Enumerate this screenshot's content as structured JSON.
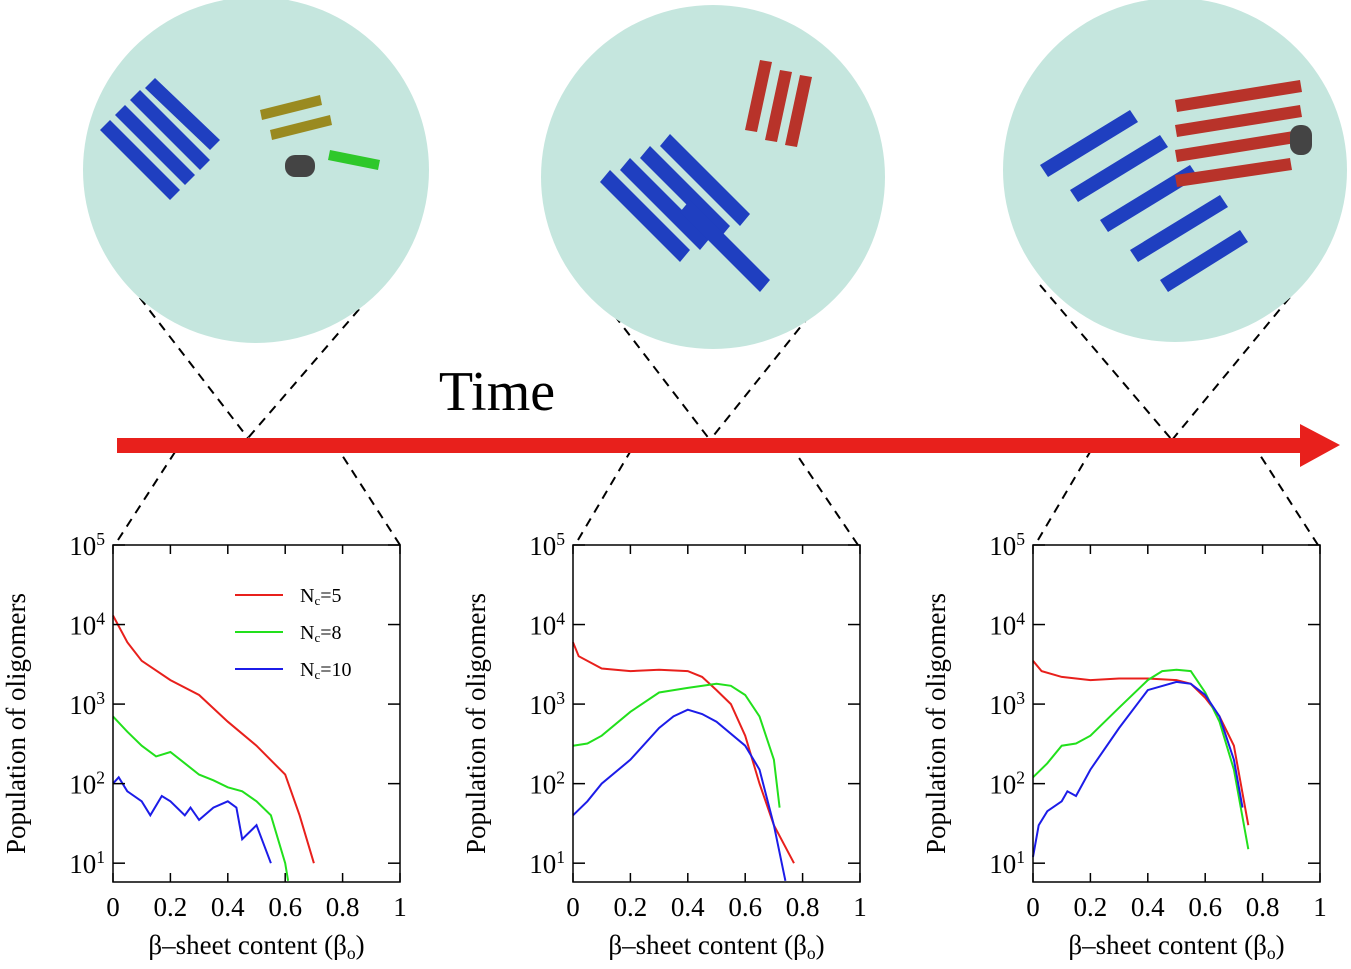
{
  "timeline": {
    "label": "Time"
  },
  "chart_data": [
    {
      "type": "line",
      "x_label": "β–sheet content (β_o)",
      "y_label": "Population of oligomers",
      "log_y": true,
      "xlim": [
        0,
        1
      ],
      "xticks": [
        0,
        0.2,
        0.4,
        0.6,
        0.8,
        1
      ],
      "ylim": [
        5.8,
        100000
      ],
      "yticks": [
        {
          "value": 10,
          "label": "10^1"
        },
        {
          "value": 100,
          "label": "10^2"
        },
        {
          "value": 1000,
          "label": "10^3"
        },
        {
          "value": 10000,
          "label": "10^4"
        },
        {
          "value": 100000,
          "label": "10^5"
        }
      ],
      "legend": "upper right",
      "series": [
        {
          "name": "N_c=5",
          "color": "#e8201c",
          "x": [
            0,
            0.05,
            0.1,
            0.2,
            0.3,
            0.4,
            0.5,
            0.6,
            0.65,
            0.7
          ],
          "values": [
            13000,
            6000,
            3500,
            2000,
            1300,
            600,
            300,
            130,
            40,
            10
          ]
        },
        {
          "name": "N_c=8",
          "color": "#22e01c",
          "x": [
            0,
            0.05,
            0.1,
            0.15,
            0.2,
            0.25,
            0.3,
            0.35,
            0.4,
            0.45,
            0.5,
            0.55,
            0.6,
            0.61
          ],
          "values": [
            700,
            450,
            300,
            220,
            250,
            180,
            130,
            110,
            90,
            80,
            60,
            40,
            10,
            6
          ]
        },
        {
          "name": "N_c=10",
          "color": "#1c1ce8",
          "x": [
            0,
            0.02,
            0.05,
            0.1,
            0.13,
            0.17,
            0.2,
            0.25,
            0.27,
            0.3,
            0.35,
            0.4,
            0.43,
            0.45,
            0.5,
            0.55
          ],
          "values": [
            100,
            120,
            80,
            60,
            40,
            70,
            60,
            40,
            50,
            35,
            50,
            60,
            50,
            20,
            30,
            10
          ]
        }
      ]
    },
    {
      "type": "line",
      "x_label": "β–sheet content (β_o)",
      "y_label": "Population of oligomers",
      "log_y": true,
      "xlim": [
        0,
        1
      ],
      "xticks": [
        0,
        0.2,
        0.4,
        0.6,
        0.8,
        1
      ],
      "ylim": [
        5.8,
        100000
      ],
      "yticks": [
        {
          "value": 10,
          "label": "10^1"
        },
        {
          "value": 100,
          "label": "10^2"
        },
        {
          "value": 1000,
          "label": "10^3"
        },
        {
          "value": 10000,
          "label": "10^4"
        },
        {
          "value": 100000,
          "label": "10^5"
        }
      ],
      "series": [
        {
          "color": "#e8201c",
          "x": [
            0,
            0.02,
            0.1,
            0.2,
            0.3,
            0.4,
            0.45,
            0.5,
            0.55,
            0.6,
            0.65,
            0.7,
            0.77
          ],
          "values": [
            6000,
            4000,
            2800,
            2600,
            2700,
            2600,
            2200,
            1500,
            1000,
            400,
            100,
            30,
            10
          ]
        },
        {
          "color": "#22e01c",
          "x": [
            0,
            0.05,
            0.1,
            0.2,
            0.3,
            0.4,
            0.5,
            0.55,
            0.6,
            0.65,
            0.7,
            0.72
          ],
          "values": [
            300,
            320,
            400,
            800,
            1400,
            1600,
            1800,
            1700,
            1300,
            700,
            200,
            50
          ]
        },
        {
          "color": "#1c1ce8",
          "x": [
            0,
            0.05,
            0.1,
            0.2,
            0.3,
            0.35,
            0.4,
            0.45,
            0.5,
            0.6,
            0.65,
            0.7,
            0.74
          ],
          "values": [
            40,
            60,
            100,
            200,
            500,
            700,
            850,
            750,
            600,
            300,
            150,
            30,
            6
          ]
        }
      ]
    },
    {
      "type": "line",
      "x_label": "β–sheet content (β_o)",
      "y_label": "Population of oligomers",
      "log_y": true,
      "xlim": [
        0,
        1
      ],
      "xticks": [
        0,
        0.2,
        0.4,
        0.6,
        0.8,
        1
      ],
      "ylim": [
        5.8,
        100000
      ],
      "yticks": [
        {
          "value": 10,
          "label": "10^1"
        },
        {
          "value": 100,
          "label": "10^2"
        },
        {
          "value": 1000,
          "label": "10^3"
        },
        {
          "value": 10000,
          "label": "10^4"
        },
        {
          "value": 100000,
          "label": "10^5"
        }
      ],
      "series": [
        {
          "color": "#e8201c",
          "x": [
            0,
            0.03,
            0.1,
            0.2,
            0.3,
            0.4,
            0.5,
            0.55,
            0.6,
            0.65,
            0.7,
            0.75
          ],
          "values": [
            3500,
            2600,
            2200,
            2000,
            2100,
            2100,
            2000,
            1800,
            1200,
            700,
            300,
            30
          ]
        },
        {
          "color": "#22e01c",
          "x": [
            0,
            0.05,
            0.1,
            0.15,
            0.2,
            0.3,
            0.4,
            0.45,
            0.5,
            0.55,
            0.6,
            0.65,
            0.7,
            0.75
          ],
          "values": [
            120,
            180,
            300,
            320,
            400,
            900,
            2000,
            2600,
            2700,
            2600,
            1400,
            600,
            150,
            15
          ]
        },
        {
          "color": "#1c1ce8",
          "x": [
            0,
            0.02,
            0.05,
            0.1,
            0.12,
            0.15,
            0.2,
            0.3,
            0.4,
            0.5,
            0.55,
            0.6,
            0.65,
            0.7,
            0.73
          ],
          "values": [
            12,
            30,
            45,
            60,
            80,
            70,
            150,
            500,
            1500,
            1900,
            1800,
            1300,
            700,
            200,
            50
          ]
        }
      ]
    }
  ]
}
